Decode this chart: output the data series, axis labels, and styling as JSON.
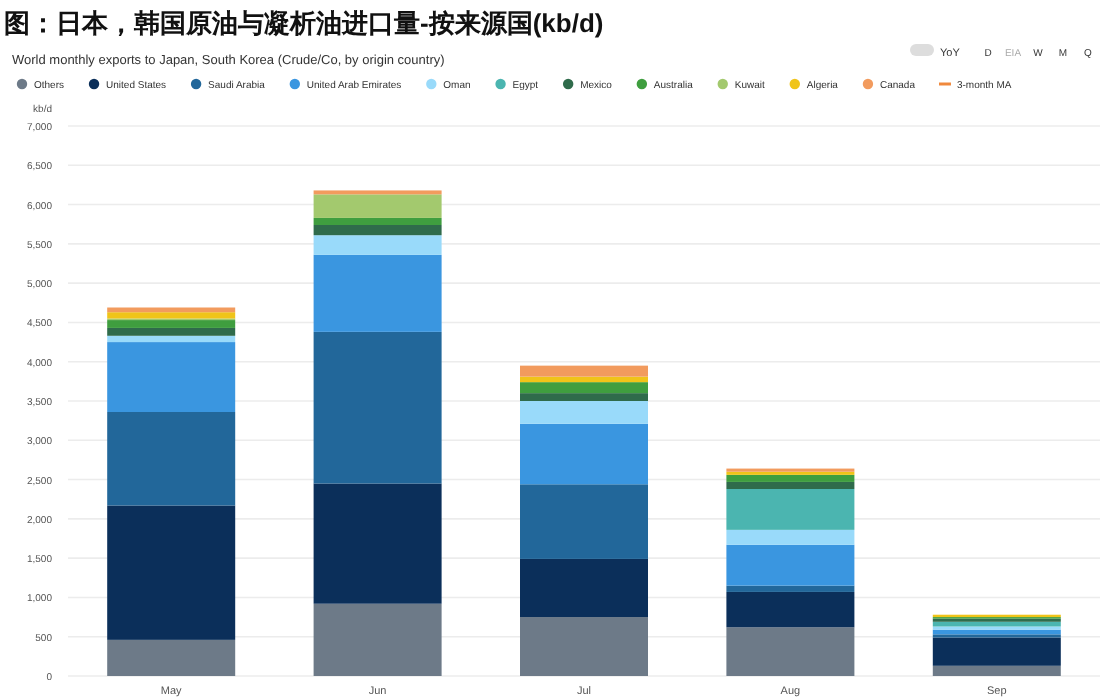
{
  "chart_data": {
    "type": "bar",
    "stacked": true,
    "title": "图：日本，韩国原油与凝析油进口量-按来源国(kb/d)",
    "subtitle": "World monthly exports to Japan, South Korea (Crude/Co, by origin country)",
    "ylabel": "kb/d",
    "annotations": [
      "YoY",
      "D",
      "EIA",
      "W",
      "M",
      "Q"
    ],
    "categories": [
      "May",
      "Jun",
      "Jul",
      "Aug",
      "Sep"
    ],
    "ylim": [
      0,
      7000
    ],
    "yticks": [
      0,
      500,
      {
        "value": 1000,
        "label": "1,000"
      },
      {
        "value": 1500,
        "label": "1,500"
      },
      {
        "value": 2000,
        "label": "2,000"
      },
      {
        "value": 2500,
        "label": "2,500"
      },
      {
        "value": 3000,
        "label": "3,000"
      },
      {
        "value": 3500,
        "label": "3,500"
      },
      {
        "value": 4000,
        "label": "4,000"
      },
      {
        "value": 4500,
        "label": "4,500"
      },
      {
        "value": 5000,
        "label": "5,000"
      },
      {
        "value": 5500,
        "label": "5,500"
      },
      {
        "value": 6000,
        "label": "6,000"
      },
      {
        "value": 6500,
        "label": "6,500"
      },
      {
        "value": 7000,
        "label": "7,000"
      }
    ],
    "grid": "y",
    "legend": "top",
    "series": [
      {
        "name": "Others",
        "color": "#6d7a88",
        "values": [
          460,
          920,
          750,
          620,
          130
        ]
      },
      {
        "name": "United States",
        "color": "#0b2f5a",
        "values": [
          1710,
          1530,
          740,
          450,
          360
        ]
      },
      {
        "name": "Saudi Arabia",
        "color": "#22679a",
        "values": [
          1190,
          1930,
          950,
          80,
          40
        ]
      },
      {
        "name": "United Arab Emirates",
        "color": "#3a96e0",
        "values": [
          890,
          980,
          770,
          520,
          60
        ]
      },
      {
        "name": "Oman",
        "color": "#99dafa",
        "values": [
          80,
          250,
          290,
          190,
          40
        ]
      },
      {
        "name": "Egypt",
        "color": "#4bb5b0",
        "values": [
          0,
          0,
          0,
          520,
          60
        ]
      },
      {
        "name": "Mexico",
        "color": "#2f6b4b",
        "values": [
          100,
          130,
          100,
          90,
          40
        ]
      },
      {
        "name": "Australia",
        "color": "#3f9e3f",
        "values": [
          100,
          90,
          140,
          90,
          20
        ]
      },
      {
        "name": "Kuwait",
        "color": "#a3c96e",
        "values": [
          20,
          300,
          0,
          0,
          0
        ]
      },
      {
        "name": "Algeria",
        "color": "#f0c419",
        "values": [
          80,
          0,
          70,
          40,
          30
        ]
      },
      {
        "name": "Canada",
        "color": "#f29b5e",
        "values": [
          60,
          50,
          140,
          40,
          0
        ]
      },
      {
        "name": "3-month MA",
        "type": "line",
        "color": "#f0893c",
        "values": [
          null,
          null,
          null,
          null,
          null
        ]
      }
    ]
  }
}
